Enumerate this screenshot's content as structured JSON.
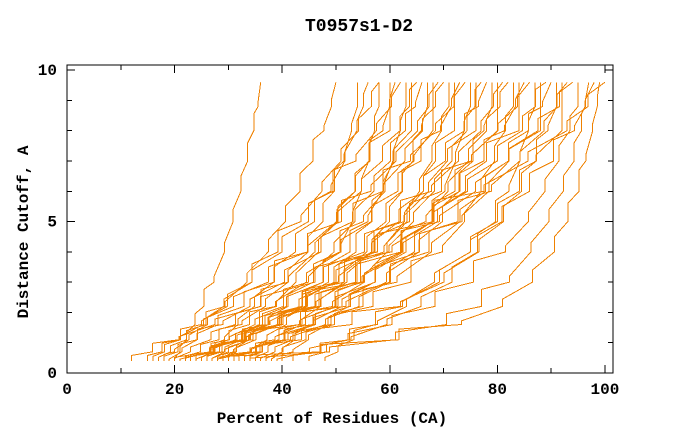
{
  "page": {
    "background": "#ffffff"
  },
  "chart_data": {
    "type": "line",
    "title": "T0957s1-D2",
    "xlabel": "Percent of Residues (CA)",
    "ylabel": "Distance Cutoff, A",
    "xlim": [
      0,
      101.5
    ],
    "ylim": [
      0,
      10.17
    ],
    "x_major_ticks": [
      0,
      20,
      40,
      60,
      80,
      100
    ],
    "x_minor_ticks": [
      10,
      30,
      50,
      70,
      90
    ],
    "y_major_ticks": [
      0,
      5,
      10
    ],
    "y_minor_ticks": [
      1,
      2,
      3,
      4,
      6,
      7,
      8,
      9
    ],
    "grid": false,
    "legend": "none",
    "line_color": "#ef8100",
    "axis_color": "#000000",
    "background_color": "#ffffff",
    "curve_count": 46,
    "cutoffs": [
      0.4,
      0.7,
      1.1,
      1.6,
      2.2,
      3,
      4,
      5,
      6,
      7,
      8,
      8.8,
      9.6
    ],
    "shape_fractions": {
      "A": [
        0,
        0.06,
        0.14,
        0.24,
        0.34,
        0.46,
        0.58,
        0.68,
        0.77,
        0.85,
        0.92,
        0.97,
        1
      ],
      "B": [
        0,
        0.1,
        0.22,
        0.36,
        0.5,
        0.63,
        0.74,
        0.82,
        0.88,
        0.93,
        0.97,
        1,
        1
      ],
      "C": [
        0,
        0.04,
        0.09,
        0.16,
        0.25,
        0.36,
        0.49,
        0.61,
        0.72,
        0.82,
        0.91,
        0.96,
        1
      ],
      "D": [
        0,
        0.08,
        0.18,
        0.3,
        0.42,
        0.55,
        0.67,
        0.77,
        0.85,
        0.91,
        1,
        1,
        1
      ],
      "E": [
        0,
        0.25,
        0.45,
        0.6,
        0.7,
        0.78,
        0.84,
        0.89,
        0.93,
        0.96,
        0.98,
        0.99,
        1
      ],
      "F": [
        0,
        0.3,
        0.52,
        0.68,
        0.78,
        0.85,
        0.9,
        0.93,
        0.955,
        0.97,
        0.985,
        0.995,
        1
      ]
    },
    "series_format": [
      "start_percent",
      "end_percent",
      "shape",
      "bow"
    ],
    "series": [
      [
        20,
        36,
        "A",
        0
      ],
      [
        17,
        50,
        "A",
        0.08
      ],
      [
        22,
        54,
        "B",
        -0.07
      ],
      [
        26,
        56,
        "C",
        0.12
      ],
      [
        18,
        58,
        "A",
        -0.1
      ],
      [
        28,
        58,
        "B",
        0.05
      ],
      [
        20,
        60,
        "D",
        -0.04
      ],
      [
        30,
        61,
        "C",
        0.1
      ],
      [
        16,
        62,
        "A",
        -0.12
      ],
      [
        24,
        63,
        "B",
        0.06
      ],
      [
        32,
        64,
        "D",
        -0.06
      ],
      [
        19,
        65,
        "C",
        0.14
      ],
      [
        27,
        66,
        "A",
        0
      ],
      [
        22,
        67,
        "B",
        0.08
      ],
      [
        34,
        68,
        "D",
        -0.07
      ],
      [
        15,
        69,
        "C",
        0.12
      ],
      [
        29,
        70,
        "A",
        -0.1
      ],
      [
        21,
        71,
        "B",
        0.05
      ],
      [
        36,
        72,
        "D",
        -0.04
      ],
      [
        25,
        73,
        "C",
        0.1
      ],
      [
        18,
        74,
        "A",
        -0.12
      ],
      [
        31,
        75,
        "B",
        0.06
      ],
      [
        23,
        76,
        "D",
        -0.06
      ],
      [
        38,
        77,
        "C",
        0.14
      ],
      [
        27,
        78,
        "A",
        0
      ],
      [
        20,
        79,
        "B",
        0.08
      ],
      [
        33,
        80,
        "D",
        -0.07
      ],
      [
        24,
        81,
        "C",
        0.12
      ],
      [
        40,
        82,
        "A",
        -0.1
      ],
      [
        28,
        83,
        "B",
        0.05
      ],
      [
        22,
        84,
        "D",
        -0.04
      ],
      [
        35,
        85,
        "C",
        0.1
      ],
      [
        26,
        86,
        "A",
        -0.12
      ],
      [
        42,
        87,
        "B",
        0.06
      ],
      [
        30,
        88,
        "D",
        -0.06
      ],
      [
        24,
        89,
        "C",
        0.14
      ],
      [
        37,
        90,
        "A",
        0
      ],
      [
        28,
        91,
        "B",
        0.08
      ],
      [
        45,
        92,
        "D",
        -0.07
      ],
      [
        32,
        93,
        "C",
        0.12
      ],
      [
        26,
        94,
        "A",
        -0.1
      ],
      [
        39,
        95,
        "B",
        0.05
      ],
      [
        34,
        97,
        "E",
        -0.04
      ],
      [
        48,
        98,
        "C",
        0.1
      ],
      [
        30,
        99,
        "F",
        -0.12
      ],
      [
        12,
        100,
        "C",
        0.06
      ]
    ]
  }
}
